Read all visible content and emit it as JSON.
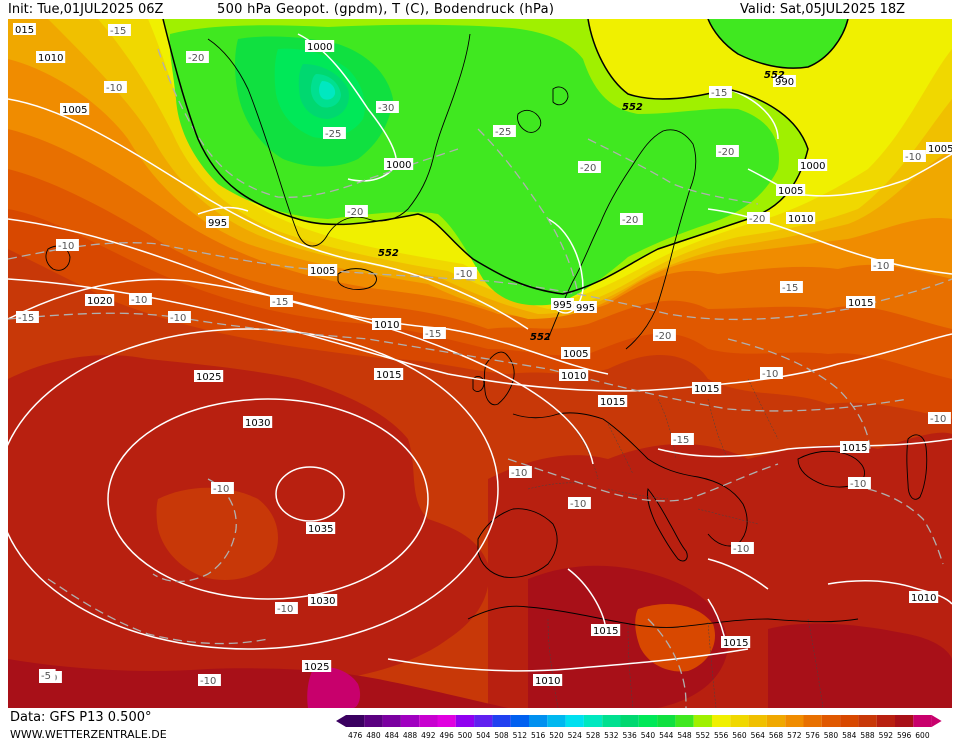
{
  "header": {
    "init": "Init: Tue,01JUL2025 06Z",
    "title": "500 hPa Geopot. (gpdm), T (C), Bodendruck (hPa)",
    "valid": "Valid: Sat,05JUL2025 18Z"
  },
  "footer": {
    "data_source": "Data: GFS P13 0.500°",
    "website": "WWW.WETTERZENTRALE.DE"
  },
  "colors": {
    "c476": "#3a0060",
    "c480": "#5a0080",
    "c484": "#7a00a0",
    "c488": "#a000c0",
    "c492": "#c800d0",
    "c496": "#e000e0",
    "c500": "#9000f0",
    "c504": "#6020f0",
    "c508": "#2040f0",
    "c512": "#0060f0",
    "c516": "#0090f0",
    "c520": "#00b8f0",
    "c524": "#00e0f0",
    "c528": "#00e8c0",
    "c532": "#00e090",
    "c536": "#00d870",
    "c540": "#00e858",
    "c544": "#10e040",
    "c548": "#40e820",
    "c552": "#a0f000",
    "c556": "#f0f000",
    "c560": "#f0d800",
    "c564": "#f0c000",
    "c568": "#f0a800",
    "c572": "#f08c00",
    "c576": "#e87000",
    "c580": "#e05800",
    "c584": "#d84800",
    "c588": "#c83808",
    "c592": "#b82010",
    "c596": "#a81018",
    "c600": "#c8006c"
  },
  "legend": {
    "ticks": [
      "476",
      "480",
      "484",
      "488",
      "492",
      "496",
      "500",
      "504",
      "508",
      "512",
      "516",
      "520",
      "524",
      "528",
      "532",
      "536",
      "540",
      "544",
      "548",
      "552",
      "556",
      "560",
      "564",
      "568",
      "572",
      "576",
      "580",
      "584",
      "588",
      "592",
      "596",
      "600"
    ]
  },
  "pressure_labels": [
    "015",
    "1010",
    "1005",
    "1000",
    "995",
    "1000",
    "1005",
    "995",
    "990",
    "1000",
    "1005",
    "1010",
    "1005",
    "1020",
    "1010",
    "1015",
    "1025",
    "1030",
    "1035",
    "1030",
    "1025",
    "1015",
    "1010",
    "1005",
    "995",
    "1015",
    "1015",
    "1010",
    "1015",
    "1015",
    "1010",
    "1010",
    "1015",
    "1015",
    "1005",
    "1000",
    "1005"
  ],
  "temp_labels": [
    "-15",
    "-20",
    "-10",
    "-30",
    "-25",
    "-25",
    "-20",
    "-20",
    "-15",
    "-20",
    "-20",
    "-15",
    "-10",
    "-10",
    "-10",
    "-20",
    "-10",
    "-15",
    "-15",
    "-10",
    "-10",
    "-10",
    "-15",
    "-10",
    "-10",
    "-10",
    "-10",
    "-10",
    "-10",
    "-10",
    "-10",
    "-5",
    "-10",
    "-10",
    "-15",
    "-10",
    "-20",
    "-20",
    "-15"
  ],
  "height_labels": [
    "552",
    "552",
    "552",
    "552"
  ]
}
